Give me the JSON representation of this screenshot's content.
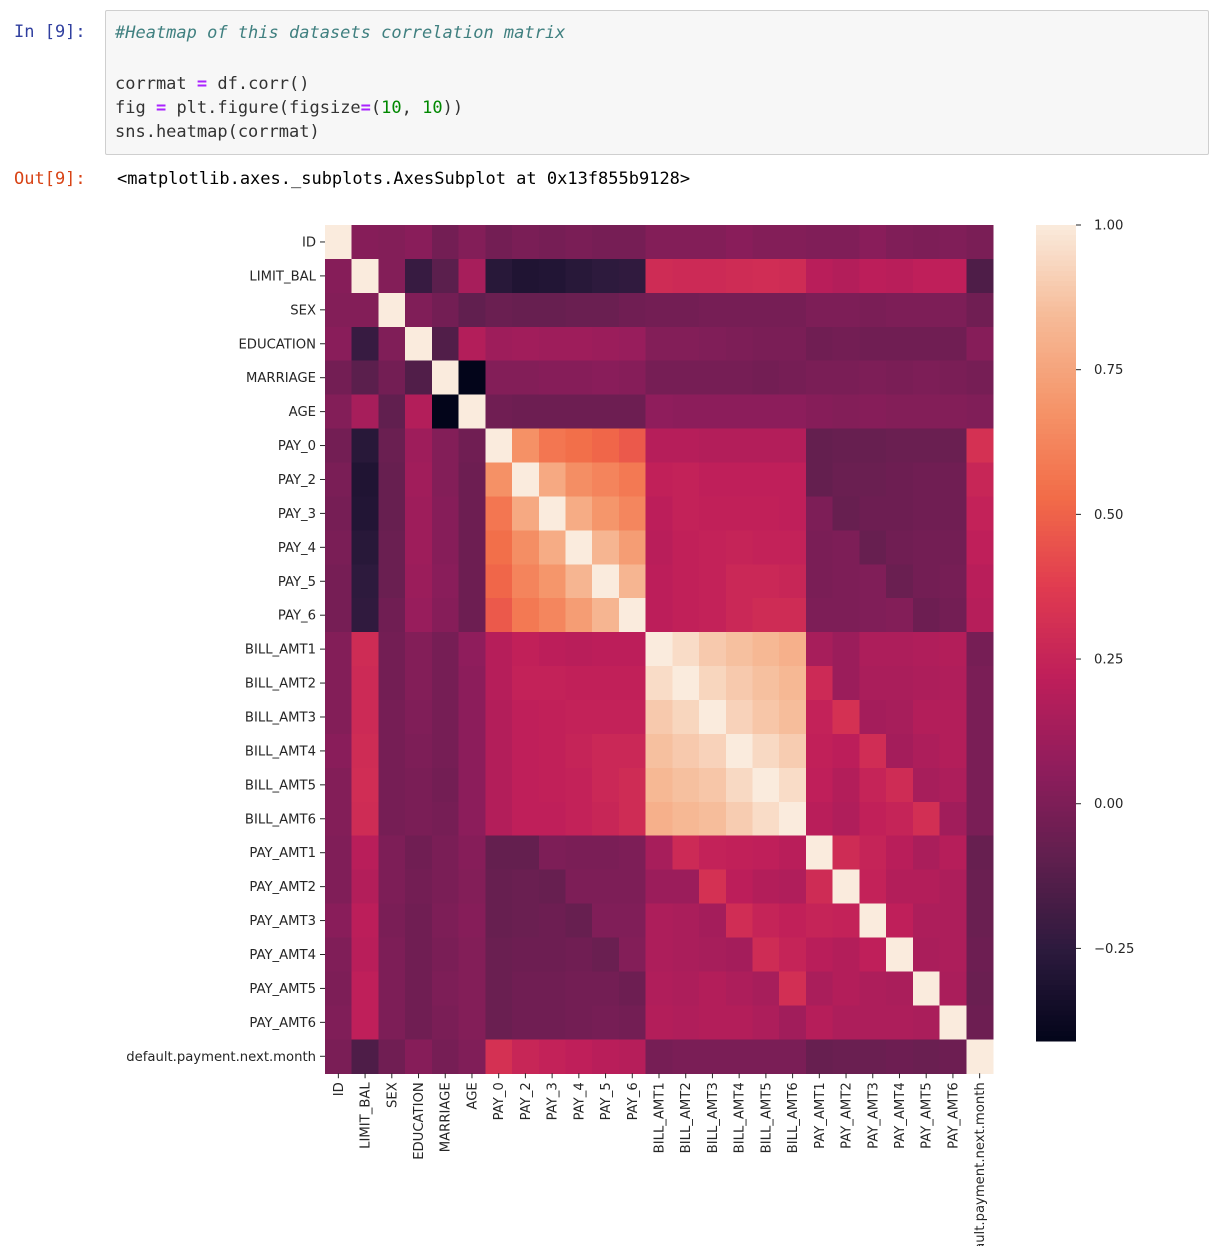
{
  "notebook": {
    "in_prompt": "In [9]:",
    "out_prompt": "Out[9]:",
    "code": {
      "comment": "#Heatmap of this datasets correlation matrix",
      "line1_a": "corrmat ",
      "line1_op": "=",
      "line1_b": " df.corr()",
      "line2_a": "fig ",
      "line2_op1": "=",
      "line2_b": " plt.figure(figsize",
      "line2_op2": "=",
      "line2_c": "(",
      "line2_n1": "10",
      "line2_d": ", ",
      "line2_n2": "10",
      "line2_e": "))",
      "line3": "sns.heatmap(corrmat)"
    },
    "output_text": "<matplotlib.axes._subplots.AxesSubplot at 0x13f855b9128>"
  },
  "chart_data": {
    "type": "heatmap",
    "labels": [
      "ID",
      "LIMIT_BAL",
      "SEX",
      "EDUCATION",
      "MARRIAGE",
      "AGE",
      "PAY_0",
      "PAY_2",
      "PAY_3",
      "PAY_4",
      "PAY_5",
      "PAY_6",
      "BILL_AMT1",
      "BILL_AMT2",
      "BILL_AMT3",
      "BILL_AMT4",
      "BILL_AMT5",
      "BILL_AMT6",
      "PAY_AMT1",
      "PAY_AMT2",
      "PAY_AMT3",
      "PAY_AMT4",
      "PAY_AMT5",
      "PAY_AMT6",
      "default.payment.next.month"
    ],
    "matrix": [
      [
        1.0,
        0.03,
        0.02,
        0.04,
        -0.03,
        0.02,
        -0.03,
        -0.01,
        -0.02,
        -0.01,
        -0.02,
        -0.02,
        0.02,
        0.02,
        0.02,
        0.04,
        0.02,
        0.02,
        0.01,
        0.01,
        0.04,
        0.01,
        0.0,
        0.01,
        -0.01
      ],
      [
        0.03,
        1.0,
        0.02,
        -0.22,
        -0.11,
        0.14,
        -0.27,
        -0.3,
        -0.29,
        -0.27,
        -0.25,
        -0.24,
        0.29,
        0.28,
        0.28,
        0.29,
        0.3,
        0.29,
        0.2,
        0.18,
        0.21,
        0.2,
        0.22,
        0.22,
        -0.15
      ],
      [
        0.02,
        0.02,
        1.0,
        0.01,
        -0.03,
        -0.09,
        -0.06,
        -0.07,
        -0.07,
        -0.06,
        -0.06,
        -0.04,
        -0.03,
        -0.03,
        -0.02,
        -0.02,
        -0.02,
        -0.02,
        -0.0,
        -0.0,
        -0.01,
        -0.0,
        -0.0,
        -0.0,
        -0.04
      ],
      [
        0.04,
        -0.22,
        0.01,
        1.0,
        -0.14,
        0.18,
        0.11,
        0.12,
        0.11,
        0.11,
        0.1,
        0.09,
        0.02,
        0.02,
        0.01,
        -0.0,
        -0.01,
        -0.01,
        -0.04,
        -0.03,
        -0.04,
        -0.04,
        -0.04,
        -0.04,
        0.03
      ],
      [
        -0.03,
        -0.11,
        -0.03,
        -0.14,
        1.0,
        -0.41,
        0.02,
        0.02,
        0.03,
        0.03,
        0.04,
        0.03,
        -0.02,
        -0.02,
        -0.02,
        -0.02,
        -0.03,
        -0.02,
        -0.01,
        -0.01,
        -0.0,
        -0.01,
        -0.0,
        -0.01,
        -0.02
      ],
      [
        0.02,
        0.14,
        -0.09,
        0.18,
        -0.41,
        1.0,
        -0.04,
        -0.05,
        -0.05,
        -0.05,
        -0.05,
        -0.05,
        0.06,
        0.05,
        0.05,
        0.05,
        0.05,
        0.05,
        0.03,
        0.02,
        0.03,
        0.02,
        0.02,
        0.02,
        0.01
      ],
      [
        -0.03,
        -0.27,
        -0.06,
        0.11,
        0.02,
        -0.04,
        1.0,
        0.67,
        0.57,
        0.54,
        0.51,
        0.47,
        0.19,
        0.19,
        0.18,
        0.18,
        0.18,
        0.18,
        -0.08,
        -0.07,
        -0.07,
        -0.06,
        -0.06,
        -0.06,
        0.32
      ],
      [
        -0.01,
        -0.3,
        -0.07,
        0.12,
        0.02,
        -0.05,
        0.67,
        1.0,
        0.77,
        0.66,
        0.62,
        0.58,
        0.23,
        0.24,
        0.22,
        0.22,
        0.22,
        0.22,
        -0.08,
        -0.06,
        -0.06,
        -0.05,
        -0.04,
        -0.04,
        0.26
      ],
      [
        -0.02,
        -0.29,
        -0.07,
        0.11,
        0.03,
        -0.05,
        0.57,
        0.77,
        1.0,
        0.78,
        0.69,
        0.63,
        0.21,
        0.24,
        0.23,
        0.23,
        0.23,
        0.22,
        0.0,
        -0.07,
        -0.05,
        -0.05,
        -0.04,
        -0.04,
        0.24
      ],
      [
        -0.01,
        -0.27,
        -0.06,
        0.11,
        0.03,
        -0.05,
        0.54,
        0.66,
        0.78,
        1.0,
        0.82,
        0.72,
        0.2,
        0.23,
        0.24,
        0.25,
        0.24,
        0.24,
        -0.01,
        -0.0,
        -0.07,
        -0.04,
        -0.03,
        -0.03,
        0.22
      ],
      [
        -0.02,
        -0.25,
        -0.06,
        0.1,
        0.04,
        -0.05,
        0.51,
        0.62,
        0.69,
        0.82,
        1.0,
        0.82,
        0.21,
        0.23,
        0.24,
        0.27,
        0.27,
        0.26,
        -0.01,
        -0.0,
        0.01,
        -0.06,
        -0.03,
        -0.02,
        0.2
      ],
      [
        -0.02,
        -0.24,
        -0.04,
        0.09,
        0.03,
        -0.05,
        0.47,
        0.58,
        0.63,
        0.72,
        0.82,
        1.0,
        0.21,
        0.23,
        0.24,
        0.27,
        0.29,
        0.29,
        -0.0,
        -0.0,
        0.01,
        0.02,
        -0.05,
        -0.03,
        0.19
      ],
      [
        0.02,
        0.29,
        -0.03,
        0.02,
        -0.02,
        0.06,
        0.19,
        0.23,
        0.21,
        0.2,
        0.21,
        0.21,
        1.0,
        0.95,
        0.89,
        0.86,
        0.83,
        0.8,
        0.14,
        0.1,
        0.16,
        0.16,
        0.17,
        0.18,
        -0.02
      ],
      [
        0.02,
        0.28,
        -0.03,
        0.02,
        -0.02,
        0.05,
        0.19,
        0.24,
        0.24,
        0.23,
        0.23,
        0.23,
        0.95,
        1.0,
        0.93,
        0.89,
        0.86,
        0.83,
        0.28,
        0.1,
        0.15,
        0.15,
        0.16,
        0.17,
        -0.01
      ],
      [
        0.02,
        0.28,
        -0.02,
        0.01,
        -0.02,
        0.05,
        0.18,
        0.22,
        0.23,
        0.24,
        0.24,
        0.24,
        0.89,
        0.93,
        1.0,
        0.92,
        0.88,
        0.85,
        0.24,
        0.32,
        0.13,
        0.14,
        0.18,
        0.18,
        -0.01
      ],
      [
        0.04,
        0.29,
        -0.02,
        -0.0,
        -0.02,
        0.05,
        0.18,
        0.22,
        0.23,
        0.25,
        0.27,
        0.27,
        0.86,
        0.89,
        0.92,
        1.0,
        0.94,
        0.9,
        0.23,
        0.21,
        0.3,
        0.13,
        0.16,
        0.18,
        -0.01
      ],
      [
        0.02,
        0.3,
        -0.02,
        -0.01,
        -0.03,
        0.05,
        0.18,
        0.22,
        0.23,
        0.24,
        0.27,
        0.29,
        0.83,
        0.86,
        0.88,
        0.94,
        1.0,
        0.95,
        0.22,
        0.18,
        0.25,
        0.29,
        0.14,
        0.16,
        -0.01
      ],
      [
        0.02,
        0.29,
        -0.02,
        -0.01,
        -0.02,
        0.05,
        0.18,
        0.22,
        0.22,
        0.24,
        0.26,
        0.29,
        0.8,
        0.83,
        0.85,
        0.9,
        0.95,
        1.0,
        0.2,
        0.17,
        0.23,
        0.25,
        0.31,
        0.12,
        -0.01
      ],
      [
        0.01,
        0.2,
        -0.0,
        -0.04,
        -0.01,
        0.03,
        -0.08,
        -0.08,
        0.0,
        -0.01,
        -0.01,
        -0.0,
        0.14,
        0.28,
        0.24,
        0.23,
        0.22,
        0.2,
        1.0,
        0.29,
        0.25,
        0.2,
        0.15,
        0.19,
        -0.07
      ],
      [
        0.01,
        0.18,
        -0.0,
        -0.03,
        -0.01,
        0.02,
        -0.07,
        -0.06,
        -0.07,
        -0.0,
        -0.0,
        -0.0,
        0.1,
        0.1,
        0.32,
        0.21,
        0.18,
        0.17,
        0.29,
        1.0,
        0.24,
        0.18,
        0.18,
        0.16,
        -0.06
      ],
      [
        0.04,
        0.21,
        -0.01,
        -0.04,
        -0.0,
        0.03,
        -0.07,
        -0.06,
        -0.05,
        -0.07,
        0.01,
        0.01,
        0.16,
        0.15,
        0.13,
        0.3,
        0.25,
        0.23,
        0.25,
        0.24,
        1.0,
        0.22,
        0.16,
        0.16,
        -0.06
      ],
      [
        0.01,
        0.2,
        -0.0,
        -0.04,
        -0.01,
        0.02,
        -0.06,
        -0.05,
        -0.05,
        -0.04,
        -0.06,
        0.02,
        0.16,
        0.15,
        0.14,
        0.13,
        0.29,
        0.25,
        0.2,
        0.18,
        0.22,
        1.0,
        0.15,
        0.16,
        -0.05
      ],
      [
        0.0,
        0.22,
        -0.0,
        -0.04,
        -0.0,
        0.02,
        -0.06,
        -0.04,
        -0.04,
        -0.03,
        -0.03,
        -0.05,
        0.17,
        0.16,
        0.18,
        0.16,
        0.14,
        0.31,
        0.15,
        0.18,
        0.16,
        0.15,
        1.0,
        0.15,
        -0.06
      ],
      [
        0.01,
        0.22,
        -0.0,
        -0.04,
        -0.01,
        0.02,
        -0.06,
        -0.04,
        -0.04,
        -0.03,
        -0.02,
        -0.03,
        0.18,
        0.17,
        0.18,
        0.18,
        0.16,
        0.12,
        0.19,
        0.16,
        0.16,
        0.16,
        0.15,
        1.0,
        -0.05
      ],
      [
        -0.01,
        -0.15,
        -0.04,
        0.03,
        -0.02,
        0.01,
        0.32,
        0.26,
        0.24,
        0.22,
        0.2,
        0.19,
        -0.02,
        -0.01,
        -0.01,
        -0.01,
        -0.01,
        -0.01,
        -0.07,
        -0.06,
        -0.06,
        -0.05,
        -0.06,
        -0.05,
        1.0
      ]
    ],
    "vmin": -0.41,
    "vmax": 1.0,
    "colorbar_ticks": [
      1.0,
      0.75,
      0.5,
      0.25,
      0.0,
      -0.25
    ],
    "colorbar_tick_labels": [
      "1.00",
      "0.75",
      "0.50",
      "0.25",
      "0.00",
      "−0.25"
    ],
    "colormap_anchors": [
      "#03051a",
      "#2c1a3d",
      "#5f1f4e",
      "#8f1d5c",
      "#be1e5a",
      "#e03b50",
      "#f26c48",
      "#f5956a",
      "#f6bb98",
      "#faebdd"
    ],
    "xlabel": "",
    "ylabel": "",
    "title": ""
  }
}
